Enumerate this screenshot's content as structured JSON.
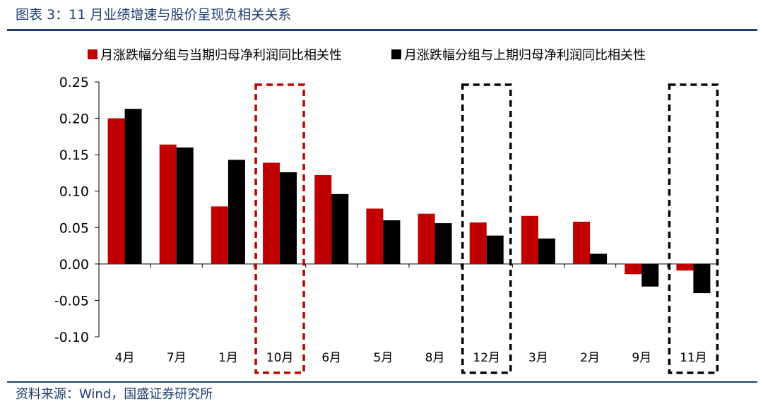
{
  "header": {
    "title": "图表 3：11 月业绩增速与股价呈现负相关关系"
  },
  "footer": {
    "source": "资料来源：Wind，国盛证券研究所"
  },
  "colors": {
    "series1": "#c00000",
    "series2": "#000000",
    "highlight_red": "#c00000",
    "highlight_black": "#000000",
    "accent": "#1f3f73"
  },
  "chart_data": {
    "type": "bar",
    "title": "",
    "xlabel": "",
    "ylabel": "",
    "ylim": [
      -0.1,
      0.25
    ],
    "yticks": [
      "0.25",
      "0.20",
      "0.15",
      "0.10",
      "0.05",
      "0.00",
      "-0.05",
      "-0.10"
    ],
    "yticks_values": [
      0.25,
      0.2,
      0.15,
      0.1,
      0.05,
      0.0,
      -0.05,
      -0.1
    ],
    "categories": [
      "4月",
      "7月",
      "1月",
      "10月",
      "6月",
      "5月",
      "8月",
      "12月",
      "3月",
      "2月",
      "9月",
      "11月"
    ],
    "series": [
      {
        "name": "月涨跌幅分组与当期归母净利润同比相关性",
        "values": [
          0.2,
          0.164,
          0.079,
          0.139,
          0.122,
          0.076,
          0.069,
          0.057,
          0.066,
          0.058,
          -0.014,
          -0.009
        ]
      },
      {
        "name": "月涨跌幅分组与上期归母净利润同比相关性",
        "values": [
          0.213,
          0.16,
          0.143,
          0.126,
          0.096,
          0.06,
          0.056,
          0.039,
          0.035,
          0.014,
          -0.031,
          -0.04
        ]
      }
    ],
    "grid": false,
    "legend": "top",
    "highlighted_categories": [
      {
        "category": "10月",
        "color": "red"
      },
      {
        "category": "12月",
        "color": "black"
      },
      {
        "category": "11月",
        "color": "black"
      }
    ]
  }
}
